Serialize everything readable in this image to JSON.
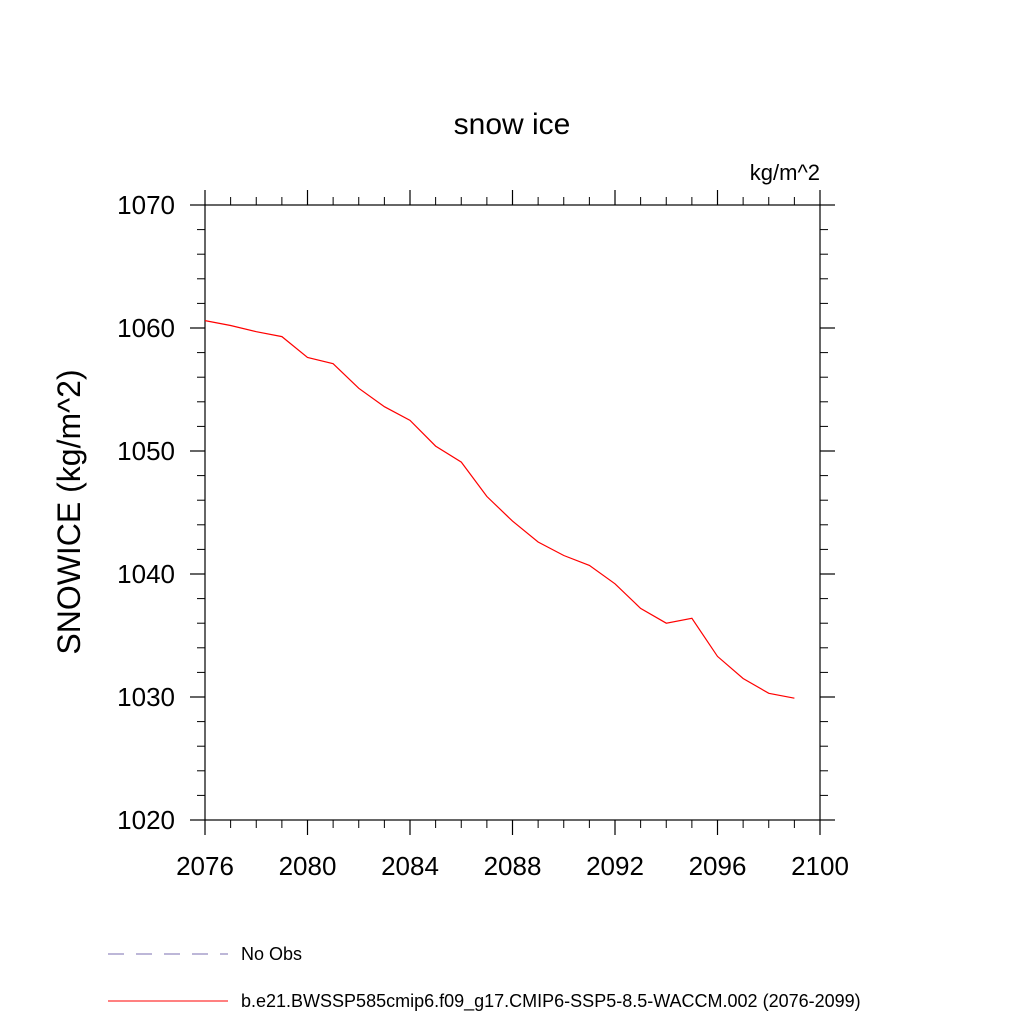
{
  "chart_data": {
    "type": "line",
    "title": "snow ice",
    "units": "kg/m^2",
    "ylabel": "SNOWICE  (kg/m^2)",
    "xlabel": "",
    "xlim": [
      2076,
      2100
    ],
    "ylim": [
      1020,
      1070
    ],
    "x_ticks": [
      2076,
      2080,
      2084,
      2088,
      2092,
      2096,
      2100
    ],
    "y_ticks": [
      1020,
      1030,
      1040,
      1050,
      1060,
      1070
    ],
    "x_minor_step": 1,
    "y_minor_step": 2,
    "grid": false,
    "legend_position": "bottom-left",
    "series": [
      {
        "name": "No Obs",
        "color": "#7b6fb0",
        "style": "dashed",
        "x": [],
        "y": []
      },
      {
        "name": "b.e21.BWSSP585cmip6.f09_g17.CMIP6-SSP5-8.5-WACCM.002 (2076-2099)",
        "color": "#ff0000",
        "style": "solid",
        "x": [
          2076,
          2077,
          2078,
          2079,
          2080,
          2081,
          2082,
          2083,
          2084,
          2085,
          2086,
          2087,
          2088,
          2089,
          2090,
          2091,
          2092,
          2093,
          2094,
          2095,
          2096,
          2097,
          2098,
          2099
        ],
        "y": [
          1060.6,
          1060.2,
          1059.7,
          1059.3,
          1057.6,
          1057.1,
          1055.1,
          1053.6,
          1052.5,
          1050.4,
          1049.1,
          1046.3,
          1044.3,
          1042.6,
          1041.5,
          1040.7,
          1039.2,
          1037.2,
          1036.0,
          1036.4,
          1033.3,
          1031.5,
          1030.3,
          1029.9
        ]
      }
    ]
  }
}
